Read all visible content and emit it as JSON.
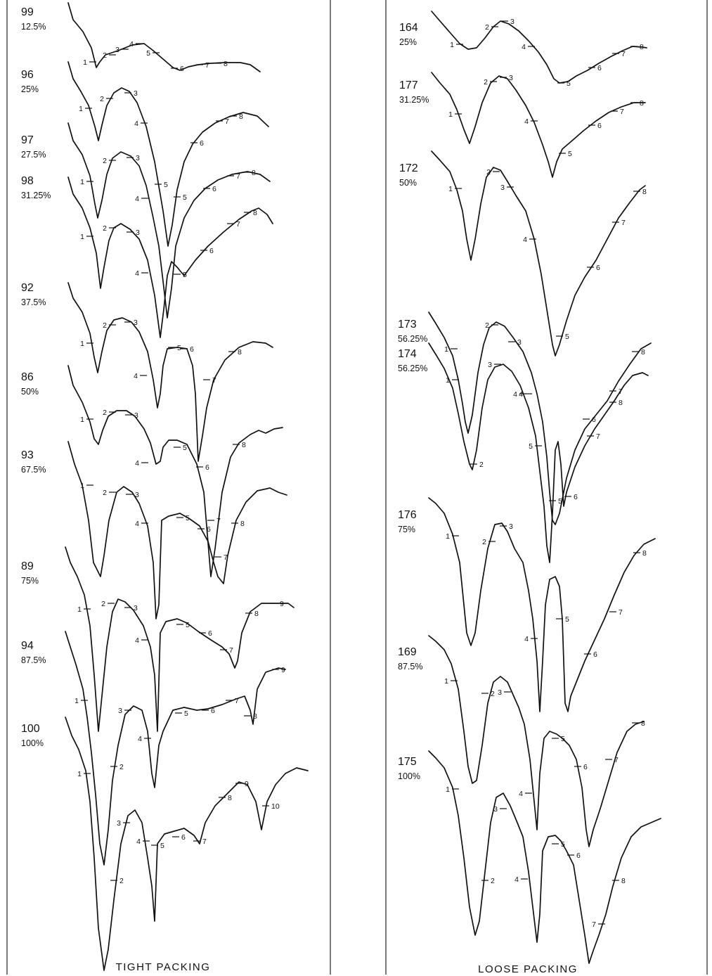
{
  "chart_data": [
    {
      "type": "line",
      "title": "TIGHT PACKING",
      "traces": [
        {
          "run": "99",
          "fraction": "12.5%",
          "ticks": [
            "1",
            "2",
            "3",
            "4",
            "5",
            "6",
            "7",
            "8"
          ]
        },
        {
          "run": "96",
          "fraction": "25%",
          "ticks": [
            "1",
            "2",
            "3",
            "4",
            "5",
            "6",
            "7",
            "8"
          ]
        },
        {
          "run": "97",
          "fraction": "27.5%",
          "ticks": [
            "1",
            "2",
            "3",
            "4",
            "5",
            "6",
            "7",
            "8"
          ]
        },
        {
          "run": "98",
          "fraction": "31.25%",
          "ticks": [
            "1",
            "2",
            "3",
            "4",
            "5",
            "6",
            "7",
            "8"
          ]
        },
        {
          "run": "92",
          "fraction": "37.5%",
          "ticks": [
            "1",
            "2",
            "3",
            "4",
            "5",
            "6",
            "7",
            "8"
          ]
        },
        {
          "run": "86",
          "fraction": "50%",
          "ticks": [
            "1",
            "2",
            "3",
            "4",
            "5",
            "6",
            "7",
            "8"
          ]
        },
        {
          "run": "93",
          "fraction": "67.5%",
          "ticks": [
            "1",
            "2",
            "3",
            "4",
            "5",
            "6",
            "7",
            "8"
          ]
        },
        {
          "run": "89",
          "fraction": "75%",
          "ticks": [
            "1",
            "2",
            "3",
            "4",
            "5",
            "6",
            "7",
            "8",
            "9"
          ]
        },
        {
          "run": "94",
          "fraction": "87.5%",
          "ticks": [
            "1",
            "2",
            "3",
            "4",
            "5",
            "6",
            "7",
            "8",
            "9"
          ]
        },
        {
          "run": "100",
          "fraction": "100%",
          "ticks": [
            "1",
            "2",
            "3",
            "4",
            "5",
            "6",
            "7",
            "8",
            "9",
            "10"
          ]
        }
      ]
    },
    {
      "type": "line",
      "title": "LOOSE PACKING",
      "traces": [
        {
          "run": "164",
          "fraction": "25%",
          "ticks": [
            "1",
            "2",
            "3",
            "4",
            "5",
            "6",
            "7",
            "8"
          ]
        },
        {
          "run": "177",
          "fraction": "31.25%",
          "ticks": [
            "1",
            "2",
            "3",
            "4",
            "5",
            "6",
            "7",
            "8"
          ]
        },
        {
          "run": "172",
          "fraction": "50%",
          "ticks": [
            "1",
            "2",
            "3",
            "4",
            "5",
            "6",
            "7",
            "8"
          ]
        },
        {
          "run": "173",
          "fraction": "56.25%",
          "ticks": [
            "1",
            "2",
            "3",
            "4",
            "5",
            "6",
            "7",
            "8"
          ]
        },
        {
          "run": "174",
          "fraction": "56.25%",
          "ticks": [
            "1",
            "2",
            "3",
            "4",
            "5",
            "6",
            "7",
            "8"
          ]
        },
        {
          "run": "176",
          "fraction": "75%",
          "ticks": [
            "1",
            "2",
            "3",
            "4",
            "5",
            "6",
            "7",
            "8"
          ]
        },
        {
          "run": "169",
          "fraction": "87.5%",
          "ticks": [
            "1",
            "2",
            "3",
            "4",
            "5",
            "6",
            "7",
            "8"
          ]
        },
        {
          "run": "175",
          "fraction": "100%",
          "ticks": [
            "1",
            "2",
            "3",
            "4",
            "5",
            "6",
            "7",
            "8"
          ]
        }
      ]
    }
  ]
}
